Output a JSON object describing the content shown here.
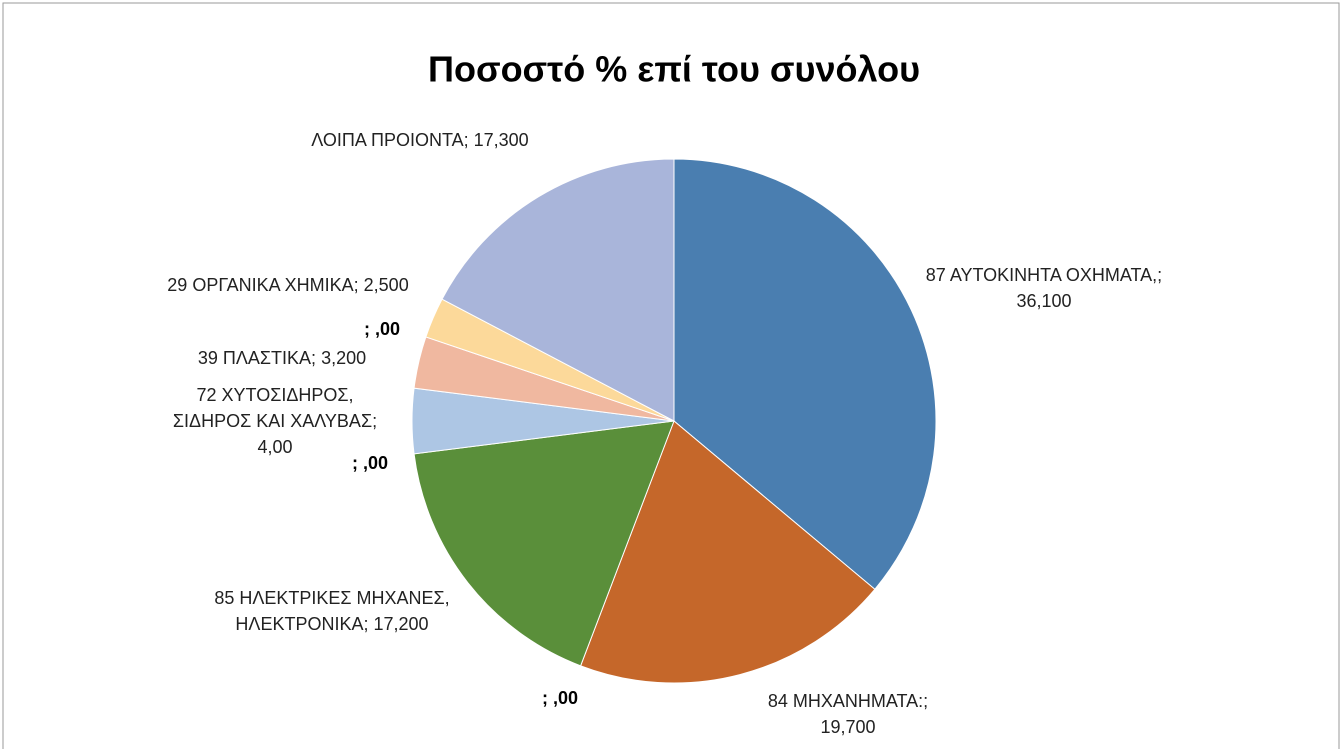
{
  "chart_data": {
    "type": "pie",
    "title": "Ποσοστό % επί του συνόλου",
    "categories": [
      "87 ΑΥΤΟΚΙΝΗΤΑ ΟΧΗΜΑΤΑ,;",
      "84 ΜΗΧΑΝΗΜΑΤΑ:;",
      ";",
      "85 ΗΛΕΚΤΡΙΚΕΣ ΜΗΧΑΝΕΣ, ΗΛΕΚΤΡΟΝΙΚΑ;",
      ";",
      "72 ΧΥΤΟΣΙΔΗΡΟΣ, ΣΙΔΗΡΟΣ ΚΑΙ ΧΑΛΥΒΑΣ;",
      "39 ΠΛΑΣΤΙΚΑ;",
      ";",
      "29 ΟΡΓΑΝΙΚΑ ΧΗΜΙΚΑ;",
      "ΛΟΙΠΑ ΠΡΟΙΟΝΤΑ;"
    ],
    "values": [
      36.1,
      19.7,
      0,
      17.2,
      0,
      4.0,
      3.2,
      0,
      2.5,
      17.3
    ],
    "value_labels": [
      "36,100",
      "19,700",
      ",00",
      "17,200",
      ",00",
      "4,00",
      "3,200",
      ",00",
      "2,500",
      "17,300"
    ],
    "colors": [
      "#4a7eb0",
      "#c5672a",
      "#888888",
      "#5a8f3a",
      "#888888",
      "#adc6e4",
      "#f0b8a0",
      "#888888",
      "#fcd99a",
      "#a9b5da"
    ]
  }
}
